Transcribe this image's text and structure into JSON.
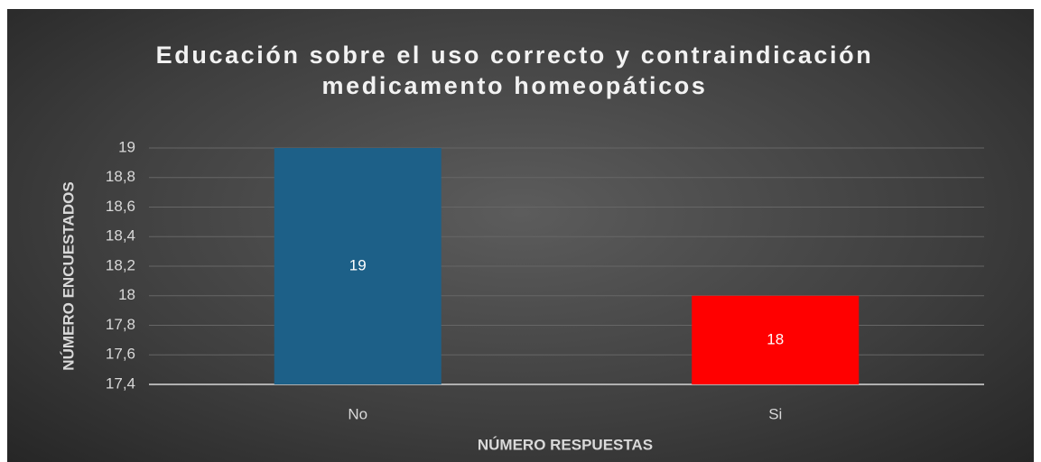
{
  "chart_data": {
    "type": "bar",
    "title": "Educación sobre el uso correcto y contraindicación medicamento homeopáticos",
    "x_label": "NÚMERO RESPUESTAS",
    "y_label": "NÚMERO ENCUESTADOS",
    "categories": [
      "No",
      "Si"
    ],
    "values": [
      19,
      18
    ],
    "colors": [
      "#1d6088",
      "#ff0000"
    ],
    "ylim": [
      17.4,
      19
    ],
    "yticks": [
      {
        "value": 17.4,
        "label": "17,4"
      },
      {
        "value": 17.6,
        "label": "17,6"
      },
      {
        "value": 17.8,
        "label": "17,8"
      },
      18,
      {
        "value": 18.2,
        "label": "18,2"
      },
      {
        "value": 18.4,
        "label": "18,4"
      },
      {
        "value": 18.6,
        "label": "18,6"
      },
      {
        "value": 18.8,
        "label": "18,8"
      },
      19
    ],
    "grid": true
  }
}
